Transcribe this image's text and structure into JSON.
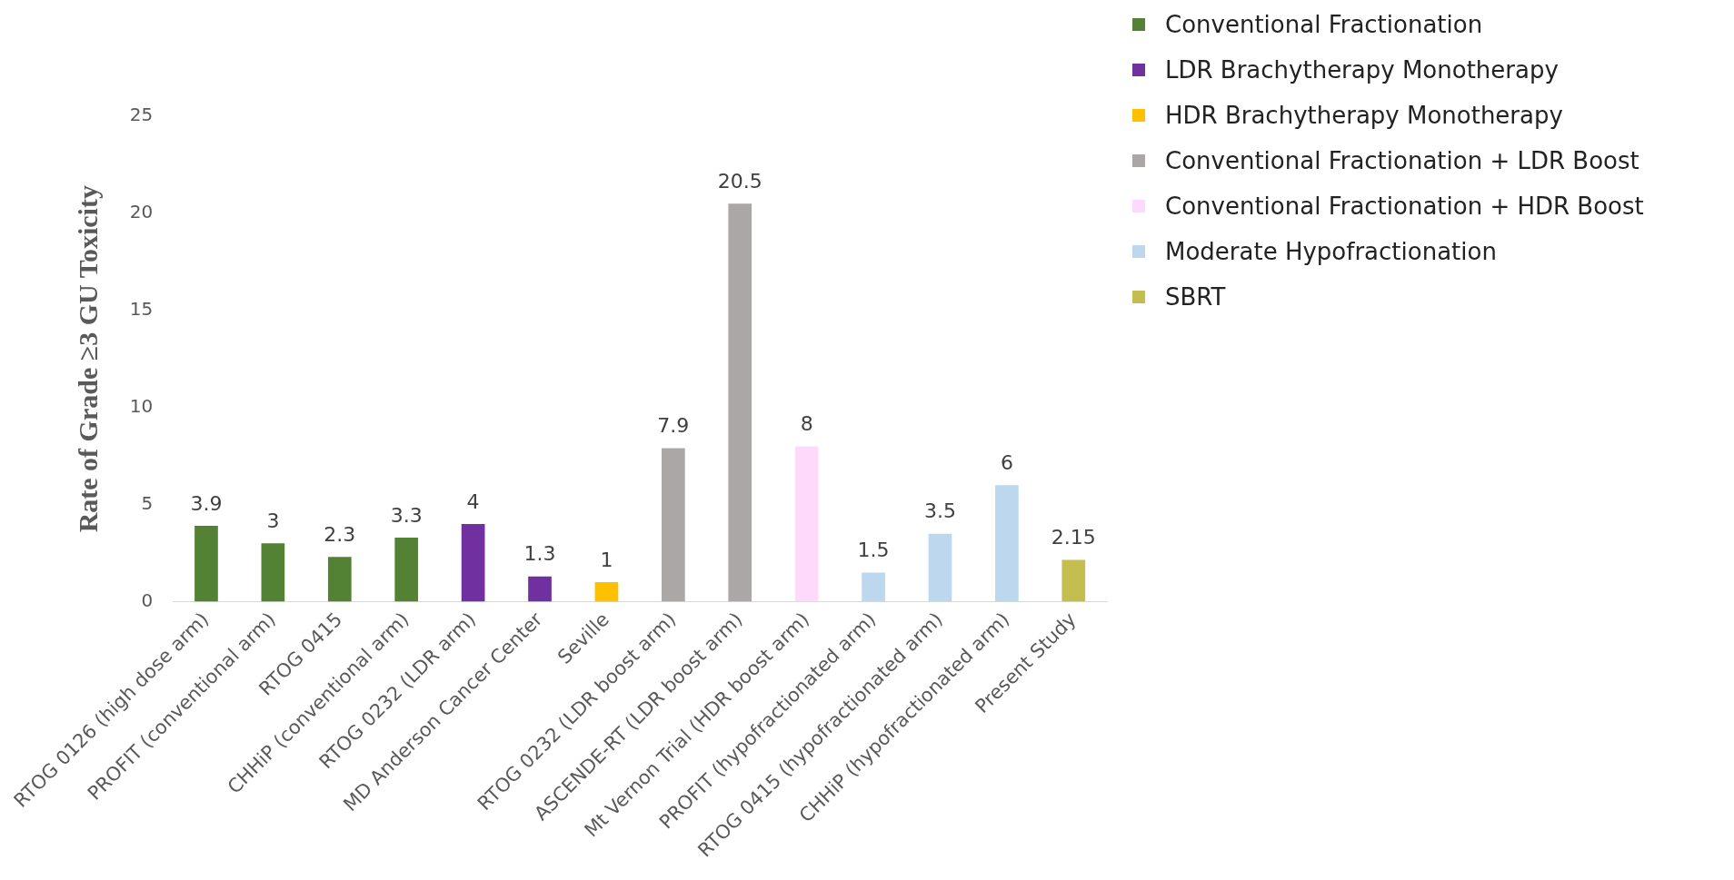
{
  "chart_data": {
    "type": "bar",
    "ylabel": "Rate of Grade ≥3 GU Toxicity",
    "categories": [
      "RTOG 0126 (high dose arm)",
      "PROFIT (conventional arm)",
      "RTOG 0415",
      "CHHiP (conventional arm)",
      "RTOG 0232 (LDR arm)",
      "MD Anderson Cancer Center",
      "Seville",
      "RTOG 0232 (LDR boost arm)",
      "ASCENDE-RT (LDR boost arm)",
      "Mt Vernon Trial (HDR boost arm)",
      "PROFIT (hypofractionated arm)",
      "RTOG 0415 (hypofractionated arm)",
      "CHHiP (hypofractionated arm)",
      "Present Study"
    ],
    "series": [
      {
        "name": "Conventional Fractionation",
        "color": "#548235",
        "values": [
          3.9,
          3,
          2.3,
          3.3,
          null,
          null,
          null,
          null,
          null,
          null,
          null,
          null,
          null,
          null
        ]
      },
      {
        "name": "LDR Brachytherapy Monotherapy",
        "color": "#7030a0",
        "values": [
          null,
          null,
          null,
          null,
          4,
          1.3,
          null,
          null,
          null,
          null,
          null,
          null,
          null,
          null
        ]
      },
      {
        "name": "HDR Brachytherapy Monotherapy",
        "color": "#ffc000",
        "values": [
          null,
          null,
          null,
          null,
          null,
          null,
          1,
          null,
          null,
          null,
          null,
          null,
          null,
          null
        ]
      },
      {
        "name": "Conventional Fractionation + LDR Boost",
        "color": "#aba7a7",
        "values": [
          null,
          null,
          null,
          null,
          null,
          null,
          null,
          7.9,
          20.5,
          null,
          null,
          null,
          null,
          null
        ]
      },
      {
        "name": "Conventional Fractionation + HDR Boost",
        "color": "#ffd9fb",
        "values": [
          null,
          null,
          null,
          null,
          null,
          null,
          null,
          null,
          null,
          8,
          null,
          null,
          null,
          null
        ]
      },
      {
        "name": "Moderate Hypofractionation",
        "color": "#bdd7ee",
        "values": [
          null,
          null,
          null,
          null,
          null,
          null,
          null,
          null,
          null,
          null,
          1.5,
          3.5,
          6,
          null
        ]
      },
      {
        "name": "SBRT",
        "color": "#c4bd50",
        "values": [
          null,
          null,
          null,
          null,
          null,
          null,
          null,
          null,
          null,
          null,
          null,
          null,
          null,
          2.15
        ]
      }
    ],
    "ylim": [
      0,
      25
    ],
    "yticks": [
      0,
      5,
      10,
      15,
      20,
      25
    ],
    "grid": false,
    "legend": "top right",
    "data_labels": true
  }
}
